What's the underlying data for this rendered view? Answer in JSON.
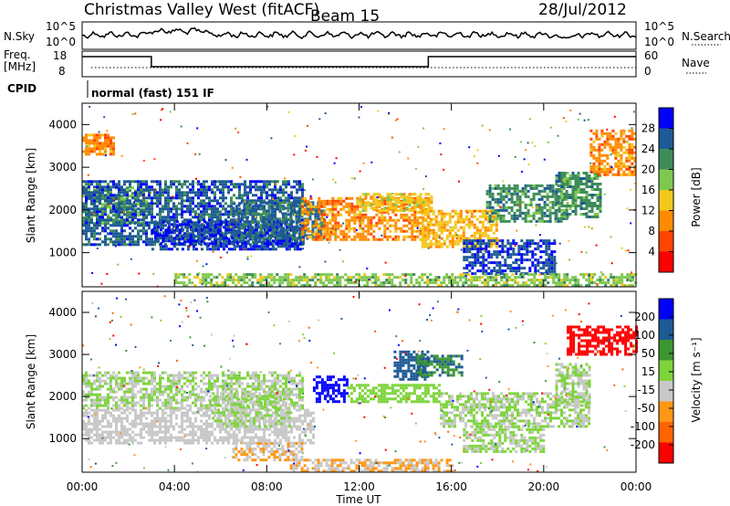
{
  "header": {
    "title": "Christmas Valley West (fitACF)",
    "beam": "Beam 15",
    "date": "28/Jul/2012"
  },
  "top_panels": {
    "nsky_label": "N.Sky",
    "nsky_ticks": [
      "10^5",
      "10^0"
    ],
    "nsearch_label": "N.Search",
    "nsearch_ticks": [
      "10^5",
      "10^0"
    ],
    "freq_label_line1": "Freq.",
    "freq_label_line2": "[MHz]",
    "freq_ticks": [
      "18",
      "8"
    ],
    "nave_label": "Nave",
    "nave_ticks": [
      "60",
      "0"
    ],
    "cpid_label": "CPID",
    "cpid_text": "normal (fast) 151 IF"
  },
  "colors": {
    "power_scale": [
      "#0000ff",
      "#1e5a96",
      "#3d8c5a",
      "#7ec850",
      "#f2c81e",
      "#ff8c00",
      "#ff4500",
      "#ff0000"
    ],
    "velocity_scale": [
      "#0000ff",
      "#1e5a96",
      "#3c9632",
      "#7ed43c",
      "#c8c8c8",
      "#ff9614",
      "#ff6400",
      "#ff0000"
    ]
  },
  "chart_data": [
    {
      "type": "heatmap",
      "name": "power",
      "ylabel": "Slant Range [km]",
      "y_ticks": [
        "4000",
        "3000",
        "2000",
        "1000"
      ],
      "ylim": [
        200,
        4500
      ],
      "colorbar_label": "Power [dB]",
      "colorbar_ticks": [
        "28",
        "24",
        "20",
        "16",
        "12",
        "8",
        "4"
      ],
      "colorbar_range": [
        0,
        32
      ],
      "regions": [
        {
          "t0": 0.0,
          "t1": 2.8,
          "r0": 1700,
          "r1": 2550,
          "v": 21
        },
        {
          "t0": 0.0,
          "t1": 9.6,
          "r0": 1200,
          "r1": 2700,
          "v": 26
        },
        {
          "t0": 3.0,
          "t1": 9.6,
          "r0": 1100,
          "r1": 1750,
          "v": 28
        },
        {
          "t0": 6.5,
          "t1": 10.5,
          "r0": 1300,
          "r1": 2200,
          "v": 25
        },
        {
          "t0": 9.5,
          "t1": 15.0,
          "r0": 1300,
          "r1": 2300,
          "v": 10
        },
        {
          "t0": 12.0,
          "t1": 15.2,
          "r0": 2000,
          "r1": 2400,
          "v": 14
        },
        {
          "t0": 14.7,
          "t1": 18.0,
          "r0": 1100,
          "r1": 2000,
          "v": 13
        },
        {
          "t0": 16.5,
          "t1": 20.5,
          "r0": 500,
          "r1": 1300,
          "v": 27
        },
        {
          "t0": 17.5,
          "t1": 21.0,
          "r0": 1700,
          "r1": 2600,
          "v": 22
        },
        {
          "t0": 20.5,
          "t1": 22.5,
          "r0": 1800,
          "r1": 2900,
          "v": 22
        },
        {
          "t0": 22.0,
          "t1": 24.0,
          "r0": 2800,
          "r1": 3900,
          "v": 10
        },
        {
          "t0": 0.0,
          "t1": 1.5,
          "r0": 3300,
          "r1": 3800,
          "v": 10
        },
        {
          "t0": 4.0,
          "t1": 24.0,
          "r0": 200,
          "r1": 500,
          "v": 18
        }
      ]
    },
    {
      "type": "heatmap",
      "name": "velocity",
      "ylabel": "Slant Range [km]",
      "y_ticks": [
        "4000",
        "3000",
        "2000",
        "1000"
      ],
      "ylim": [
        200,
        4500
      ],
      "colorbar_label": "Velocity [m s⁻¹]",
      "colorbar_ticks": [
        "200",
        "100",
        "50",
        "15",
        "-15",
        "-50",
        "-100",
        "-200"
      ],
      "colorbar_range": [
        -250,
        250
      ],
      "regions": [
        {
          "t0": 0.0,
          "t1": 9.6,
          "r0": 1700,
          "r1": 2600,
          "v": 0
        },
        {
          "t0": 0.0,
          "t1": 10.0,
          "r0": 900,
          "r1": 1700,
          "v": -40
        },
        {
          "t0": 5.5,
          "t1": 9.0,
          "r0": 1300,
          "r1": 2100,
          "v": 0
        },
        {
          "t0": 10.0,
          "t1": 11.5,
          "r0": 1900,
          "r1": 2500,
          "v": 220
        },
        {
          "t0": 11.5,
          "t1": 15.5,
          "r0": 1900,
          "r1": 2300,
          "v": 40
        },
        {
          "t0": 13.5,
          "t1": 15.0,
          "r0": 2400,
          "r1": 3100,
          "v": 150
        },
        {
          "t0": 14.5,
          "t1": 16.5,
          "r0": 2500,
          "r1": 3000,
          "v": 120
        },
        {
          "t0": 15.5,
          "t1": 22.0,
          "r0": 1300,
          "r1": 2100,
          "v": 0
        },
        {
          "t0": 16.5,
          "t1": 20.0,
          "r0": 700,
          "r1": 1300,
          "v": 0
        },
        {
          "t0": 20.5,
          "t1": 22.0,
          "r0": 1800,
          "r1": 2800,
          "v": 0
        },
        {
          "t0": 21.0,
          "t1": 24.0,
          "r0": 3000,
          "r1": 3700,
          "v": -210
        },
        {
          "t0": 9.0,
          "t1": 16.0,
          "r0": 200,
          "r1": 500,
          "v": -60
        },
        {
          "t0": 6.5,
          "t1": 9.5,
          "r0": 500,
          "r1": 900,
          "v": -60
        }
      ]
    }
  ],
  "x_axis": {
    "label": "Time UT",
    "ticks": [
      "00:00",
      "04:00",
      "08:00",
      "12:00",
      "16:00",
      "20:00",
      "00:00"
    ],
    "range_hours": [
      0,
      24
    ]
  }
}
